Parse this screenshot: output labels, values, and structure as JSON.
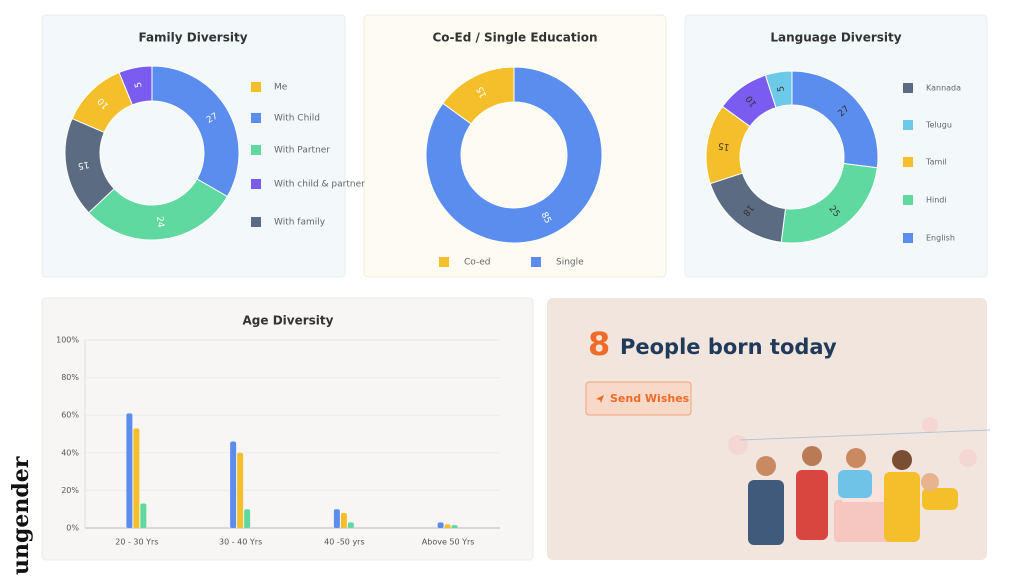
{
  "chart_data": [
    {
      "type": "donut",
      "title": "Family Diversity",
      "categories": [
        "Me",
        "With Child",
        "With Partner",
        "With child & partner",
        "With family"
      ],
      "values": [
        10,
        27,
        24,
        5,
        15
      ],
      "colors": [
        "#f4bf2a",
        "#5b8def",
        "#5fd9a0",
        "#7b5cf0",
        "#5a6b82"
      ]
    },
    {
      "type": "donut",
      "title": "Co-Ed / Single Education",
      "categories": [
        "Co-ed",
        "Single"
      ],
      "values": [
        15,
        85
      ],
      "colors": [
        "#f4bf2a",
        "#5b8def"
      ]
    },
    {
      "type": "donut",
      "title": "Language Diversity",
      "categories": [
        "Kannada",
        "Telugu",
        "Tamil",
        "Hindi",
        "English",
        null
      ],
      "values": [
        18,
        5,
        15,
        25,
        27,
        10
      ],
      "colors": [
        "#5a6b82",
        "#6cc9e8",
        "#f4bf2a",
        "#5fd9a0",
        "#5b8def",
        "#7b5cf0"
      ]
    },
    {
      "type": "bar",
      "title": "Age Diversity",
      "categories": [
        "20 - 30 Yrs",
        "30 - 40 Yrs",
        "40 -50 yrs",
        "Above 50 Yrs"
      ],
      "series": [
        {
          "color": "#5b8def",
          "values": [
            61,
            46,
            10,
            3
          ]
        },
        {
          "color": "#f4bf2a",
          "values": [
            53,
            40,
            8,
            2
          ]
        },
        {
          "color": "#5fd9a0",
          "values": [
            13,
            10,
            3,
            1.5
          ]
        }
      ],
      "ylim": [
        0,
        100
      ],
      "yticks": [
        {
          "value": 0,
          "label": "0%"
        },
        {
          "value": 20,
          "label": "20%"
        },
        {
          "value": 40,
          "label": "40%"
        },
        {
          "value": 60,
          "label": "60%"
        },
        {
          "value": 80,
          "label": "80%"
        },
        {
          "value": 100,
          "label": "100%"
        }
      ],
      "grid": true
    }
  ],
  "birthday_card": {
    "count": 8,
    "text": "People born today",
    "button": "Send Wishes"
  },
  "logo": "ungender"
}
